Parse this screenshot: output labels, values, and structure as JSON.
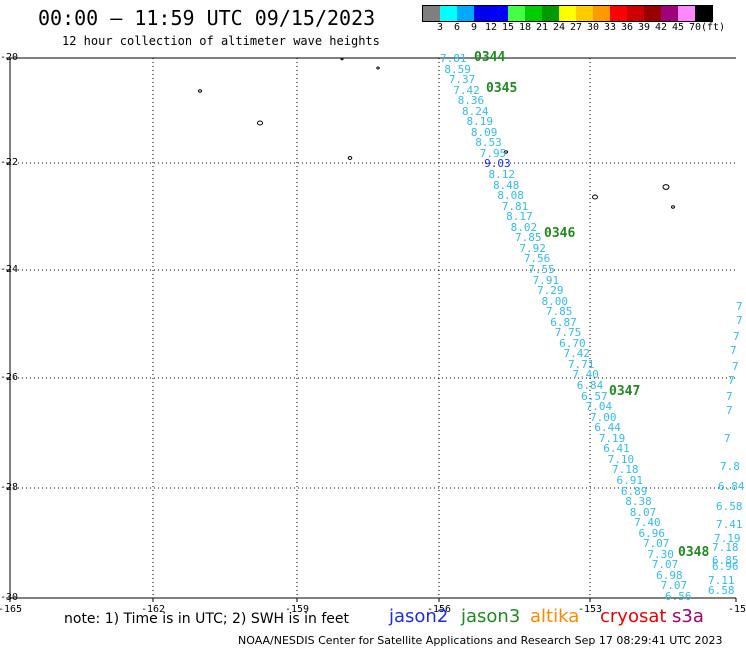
{
  "header": {
    "title": "00:00 — 11:59 UTC 09/15/2023",
    "subtitle": "12 hour collection of altimeter wave heights"
  },
  "color_scale": {
    "values": [
      "3",
      "6",
      "9",
      "12",
      "15",
      "18",
      "21",
      "24",
      "27",
      "30",
      "33",
      "36",
      "39",
      "42",
      "45",
      "70"
    ],
    "unit": "(ft)",
    "colors": [
      "#7f7f7f",
      "#00ffff",
      "#00aaff",
      "#0000ee",
      "#0000ff",
      "#44ff44",
      "#00cc00",
      "#009900",
      "#ffff00",
      "#ffcc00",
      "#ff9900",
      "#ff0000",
      "#cc0000",
      "#990000",
      "#a0007a",
      "#ff88ff",
      "#000000"
    ]
  },
  "map": {
    "lat_labels": [
      "-20",
      "-22",
      "-24",
      "-26",
      "-28",
      "-30"
    ],
    "lon_labels": [
      "-165",
      "-162",
      "-159",
      "-156",
      "-153",
      "-15"
    ],
    "pass_labels": [
      "0344",
      "0345",
      "0346",
      "0347",
      "0348"
    ],
    "track_main": [
      {
        "t": "7.81"
      },
      {
        "t": "8.59"
      },
      {
        "t": "7.37"
      },
      {
        "t": "7.42"
      },
      {
        "t": "8.36"
      },
      {
        "t": "8.24"
      },
      {
        "t": "8.19"
      },
      {
        "t": "8.09"
      },
      {
        "t": "8.53"
      },
      {
        "t": "7.95"
      },
      {
        "t": "9.03",
        "dk": true
      },
      {
        "t": "8.12"
      },
      {
        "t": "8.48"
      },
      {
        "t": "8.08"
      },
      {
        "t": "7.81"
      },
      {
        "t": "8.17"
      },
      {
        "t": "8.02"
      },
      {
        "t": "7.85"
      },
      {
        "t": "7.92"
      },
      {
        "t": "7.56"
      },
      {
        "t": "7.55"
      },
      {
        "t": "7.91"
      },
      {
        "t": "7.29"
      },
      {
        "t": "8.00"
      },
      {
        "t": "7.85"
      },
      {
        "t": "6.87"
      },
      {
        "t": "7.75"
      },
      {
        "t": "6.70"
      },
      {
        "t": "7.42"
      },
      {
        "t": "7.71"
      },
      {
        "t": "7.40"
      },
      {
        "t": "6.84"
      },
      {
        "t": "6.57"
      },
      {
        "t": "7.04"
      },
      {
        "t": "7.00"
      },
      {
        "t": "6.44"
      },
      {
        "t": "7.19"
      },
      {
        "t": "6.41"
      },
      {
        "t": "7.10"
      },
      {
        "t": "7.18"
      },
      {
        "t": "6.91"
      },
      {
        "t": "6.89"
      },
      {
        "t": "8.38"
      },
      {
        "t": "8.07"
      },
      {
        "t": "7.40"
      },
      {
        "t": "6.96"
      },
      {
        "t": "7.07"
      },
      {
        "t": "7.30"
      },
      {
        "t": "7.07"
      },
      {
        "t": "6.98"
      },
      {
        "t": "7.07"
      },
      {
        "t": "6.56"
      }
    ],
    "track_edge": [
      {
        "t": "7"
      },
      {
        "t": "7"
      },
      {
        "t": "7"
      },
      {
        "t": "7"
      },
      {
        "t": "7"
      },
      {
        "t": "7"
      },
      {
        "t": "7"
      },
      {
        "t": "7"
      },
      {
        "t": "7"
      },
      {
        "t": "7.8"
      },
      {
        "t": "6.84"
      },
      {
        "t": "6.58"
      },
      {
        "t": "7.41"
      },
      {
        "t": "7.19"
      },
      {
        "t": "7.18"
      },
      {
        "t": "6.85"
      },
      {
        "t": "6.96"
      },
      {
        "t": "7.11"
      },
      {
        "t": "6.58"
      }
    ]
  },
  "footer": {
    "note": "note: 1) Time is in UTC; 2) SWH is in feet",
    "satellites": [
      {
        "name": "jason2",
        "color": "#1a2ee6"
      },
      {
        "name": "jason3",
        "color": "#1f8a1f"
      },
      {
        "name": "altika",
        "color": "#ff8800"
      },
      {
        "name": "cryosat",
        "color": "#ee0000"
      },
      {
        "name": "s3a",
        "color": "#a0007a"
      }
    ],
    "credit": "NOAA/NESDIS Center for Satellite Applications and Research    Sep 17 08:29:41 UTC 2023"
  }
}
